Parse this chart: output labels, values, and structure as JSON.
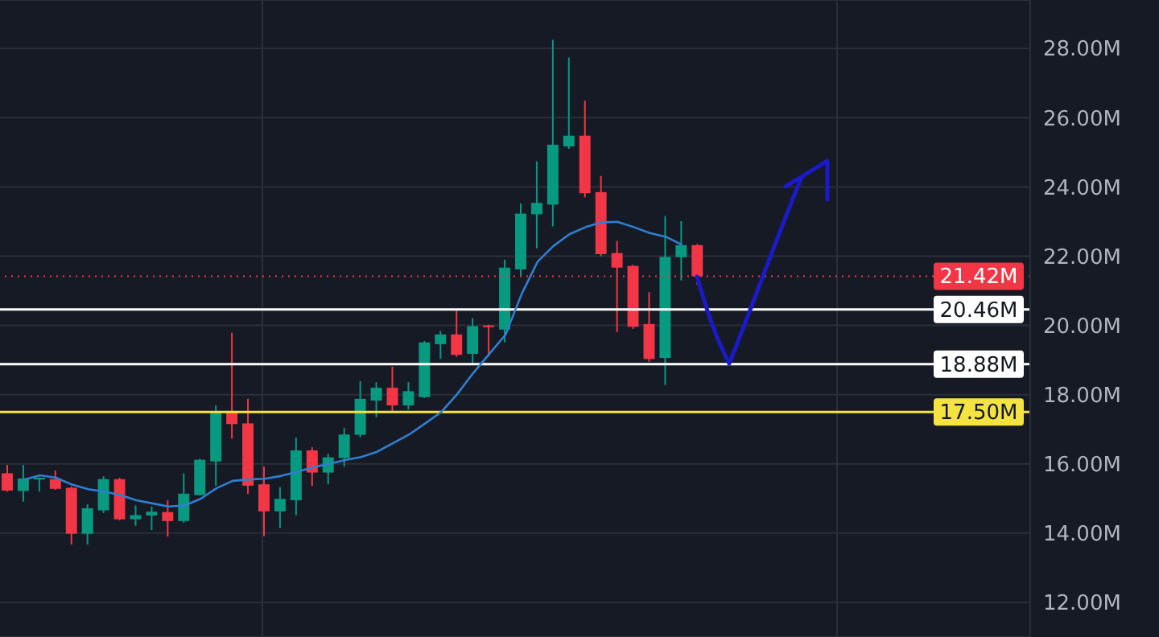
{
  "chart_data": {
    "type": "candlestick",
    "categories": [
      null,
      null,
      null,
      null,
      null,
      null,
      null,
      null,
      null,
      null,
      null,
      null,
      null,
      null,
      null,
      null,
      null,
      null,
      null,
      null,
      null,
      null,
      null,
      null,
      null,
      null,
      null,
      null,
      null,
      null,
      null,
      null,
      null,
      null,
      null,
      null,
      null,
      null,
      null,
      null,
      null,
      null,
      null,
      null
    ],
    "series": [
      {
        "type": "candlestick",
        "ohlc": [
          [
            15.73,
            15.97,
            15.2,
            15.23
          ],
          [
            15.22,
            15.97,
            14.91,
            15.58
          ],
          [
            15.55,
            15.61,
            15.2,
            15.6
          ],
          [
            15.56,
            15.81,
            15.25,
            15.28
          ],
          [
            15.31,
            15.35,
            13.67,
            13.98
          ],
          [
            13.98,
            14.83,
            13.67,
            14.72
          ],
          [
            14.66,
            15.64,
            14.58,
            15.56
          ],
          [
            15.56,
            15.6,
            14.37,
            14.4
          ],
          [
            14.4,
            14.8,
            14.21,
            14.52
          ],
          [
            14.51,
            14.77,
            14.09,
            14.62
          ],
          [
            14.61,
            14.95,
            13.9,
            14.35
          ],
          [
            14.35,
            15.73,
            14.3,
            15.14
          ],
          [
            15.1,
            16.15,
            15.1,
            16.12
          ],
          [
            16.07,
            17.69,
            15.37,
            17.52
          ],
          [
            17.5,
            19.79,
            16.73,
            17.15
          ],
          [
            17.17,
            17.88,
            15.13,
            15.37
          ],
          [
            15.41,
            15.92,
            13.91,
            14.63
          ],
          [
            14.63,
            15.33,
            14.15,
            14.99
          ],
          [
            14.95,
            16.76,
            14.52,
            16.39
          ],
          [
            16.39,
            16.48,
            15.36,
            15.75
          ],
          [
            15.75,
            16.29,
            15.41,
            16.19
          ],
          [
            16.17,
            17.04,
            15.92,
            16.85
          ],
          [
            16.84,
            18.39,
            16.77,
            17.88
          ],
          [
            17.83,
            18.36,
            17.35,
            18.2
          ],
          [
            18.2,
            18.81,
            17.5,
            17.69
          ],
          [
            17.69,
            18.36,
            17.57,
            18.1
          ],
          [
            17.93,
            19.55,
            17.9,
            19.51
          ],
          [
            19.46,
            19.84,
            19.03,
            19.74
          ],
          [
            19.74,
            20.46,
            19.09,
            19.15
          ],
          [
            19.18,
            20.21,
            18.88,
            19.98
          ],
          [
            20.0,
            20.02,
            19.1,
            19.95
          ],
          [
            19.88,
            21.9,
            19.51,
            21.67
          ],
          [
            21.62,
            23.52,
            21.42,
            23.23
          ],
          [
            23.21,
            24.74,
            22.23,
            23.54
          ],
          [
            23.49,
            28.25,
            22.86,
            25.22
          ],
          [
            25.17,
            27.74,
            25.1,
            25.48
          ],
          [
            25.48,
            26.49,
            23.7,
            23.82
          ],
          [
            23.85,
            24.32,
            22.0,
            22.06
          ],
          [
            22.09,
            22.44,
            19.81,
            21.67
          ],
          [
            21.72,
            21.75,
            19.9,
            19.96
          ],
          [
            20.04,
            20.96,
            18.95,
            19.03
          ],
          [
            19.06,
            23.16,
            18.28,
            21.98
          ],
          [
            21.97,
            23.01,
            21.3,
            22.32
          ],
          [
            22.32,
            22.35,
            21.18,
            21.42
          ]
        ],
        "colors": [
          "#f23645",
          "#089981",
          "#089981",
          "#f23645",
          "#f23645",
          "#089981",
          "#089981",
          "#f23645",
          "#089981",
          "#089981",
          "#f23645",
          "#089981",
          "#089981",
          "#089981",
          "#f23645",
          "#f23645",
          "#f23645",
          "#089981",
          "#089981",
          "#f23645",
          "#089981",
          "#089981",
          "#089981",
          "#089981",
          "#f23645",
          "#089981",
          "#089981",
          "#089981",
          "#f23645",
          "#089981",
          "#f23645",
          "#089981",
          "#089981",
          "#089981",
          "#089981",
          "#089981",
          "#f23645",
          "#f23645",
          "#f23645",
          "#f23645",
          "#f23645",
          "#089981",
          "#089981",
          "#f23645"
        ]
      },
      {
        "type": "line",
        "color": "#2f7fd1",
        "values": [
          null,
          15.55,
          15.67,
          15.6,
          15.4,
          15.27,
          15.2,
          15.1,
          14.95,
          14.86,
          14.77,
          14.8,
          14.99,
          15.3,
          15.51,
          15.55,
          15.57,
          15.65,
          15.77,
          15.9,
          16.0,
          16.11,
          16.2,
          16.35,
          16.6,
          16.85,
          17.17,
          17.5,
          18.02,
          18.63,
          19.18,
          19.73,
          20.9,
          21.84,
          22.3,
          22.64,
          22.84,
          22.98,
          22.99,
          22.84,
          22.67,
          22.56,
          22.33,
          null
        ]
      }
    ],
    "ylim": [
      11,
      29.4
    ],
    "yticks": [
      {
        "value": 12,
        "label": "12.00M"
      },
      {
        "value": 14,
        "label": "14.00M"
      },
      {
        "value": 16,
        "label": "16.00M"
      },
      {
        "value": 18,
        "label": "18.00M"
      },
      {
        "value": 20,
        "label": "20.00M"
      },
      {
        "value": 22,
        "label": "22.00M"
      },
      {
        "value": 24,
        "label": "24.00M"
      },
      {
        "value": 26,
        "label": "26.00M"
      },
      {
        "value": 28,
        "label": "28.00M"
      }
    ],
    "ref_lines": [
      {
        "axis": "y",
        "value": 21.42,
        "label": "21.42M",
        "color": "#f23645",
        "line_style": "dotted"
      },
      {
        "axis": "y",
        "value": 20.46,
        "label": "20.46M",
        "color": "#ffffff",
        "line_style": "solid"
      },
      {
        "axis": "y",
        "value": 18.88,
        "label": "18.88M",
        "color": "#ffffff",
        "line_style": "solid"
      },
      {
        "axis": "y",
        "value": 17.5,
        "label": "17.50M",
        "color": "#f5e342",
        "line_style": "solid"
      }
    ],
    "grid": true,
    "tick_labels": "y"
  }
}
